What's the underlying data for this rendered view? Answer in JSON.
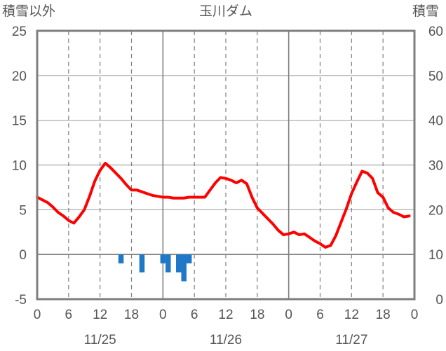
{
  "chart_data": {
    "type": "line",
    "title": "玉川ダム",
    "ylabel_left": "積雪以外",
    "ylabel_right": "積雪",
    "left_axis": {
      "min": -5,
      "max": 25,
      "ticks": [
        "-5",
        "0",
        "5",
        "10",
        "15",
        "20",
        "25"
      ]
    },
    "right_axis": {
      "min": 0,
      "max": 60,
      "ticks": [
        "0",
        "10",
        "20",
        "30",
        "40",
        "50",
        "60"
      ]
    },
    "x_hours_range": [
      0,
      72
    ],
    "x_tick_labels": [
      "0",
      "6",
      "12",
      "18",
      "0",
      "6",
      "12",
      "18",
      "0",
      "6",
      "12",
      "18",
      "0"
    ],
    "date_labels": [
      {
        "label": "11/25",
        "hour": 12
      },
      {
        "label": "11/26",
        "hour": 36
      },
      {
        "label": "11/27",
        "hour": 60
      }
    ],
    "grid": true,
    "series": [
      {
        "role": "line",
        "axis": "left",
        "color": "#ff0000",
        "x": [
          0,
          1,
          2,
          3,
          4,
          5,
          6,
          7,
          8,
          9,
          10,
          11,
          12,
          13,
          14,
          15,
          16,
          17,
          18,
          19,
          20,
          21,
          22,
          23,
          24,
          25,
          26,
          27,
          28,
          29,
          30,
          31,
          32,
          33,
          34,
          35,
          36,
          37,
          38,
          39,
          40,
          41,
          42,
          43,
          44,
          45,
          46,
          47,
          48,
          49,
          50,
          51,
          52,
          53,
          54,
          55,
          56,
          57,
          58,
          59,
          60,
          61,
          62,
          63,
          64,
          65,
          66,
          67,
          68,
          69,
          70,
          71
        ],
        "values": [
          6.4,
          6.1,
          5.8,
          5.3,
          4.7,
          4.3,
          3.8,
          3.5,
          4.2,
          5.0,
          6.5,
          8.2,
          9.4,
          10.2,
          9.7,
          9.1,
          8.5,
          7.8,
          7.2,
          7.2,
          7.0,
          6.8,
          6.6,
          6.5,
          6.4,
          6.4,
          6.3,
          6.3,
          6.3,
          6.4,
          6.4,
          6.4,
          6.4,
          7.2,
          8.0,
          8.6,
          8.5,
          8.3,
          8.0,
          8.3,
          7.9,
          6.4,
          5.2,
          4.6,
          4.0,
          3.4,
          2.7,
          2.2,
          2.3,
          2.5,
          2.2,
          2.3,
          1.9,
          1.5,
          1.2,
          0.8,
          1.0,
          2.1,
          3.6,
          5.1,
          6.8,
          8.1,
          9.3,
          9.1,
          8.5,
          6.9,
          6.4,
          5.2,
          4.7,
          4.5,
          4.2,
          4.3
        ]
      },
      {
        "role": "bars",
        "axis": "left",
        "color": "#1f77c8",
        "x": [
          16,
          20,
          24,
          25,
          27,
          28,
          29
        ],
        "values": [
          -1,
          -2,
          -1,
          -2,
          -2,
          -3,
          -1
        ]
      },
      {
        "role": "line",
        "axis": "right",
        "color": "#7030a0",
        "x": [
          0,
          72
        ],
        "values": [
          0,
          0
        ]
      }
    ]
  }
}
